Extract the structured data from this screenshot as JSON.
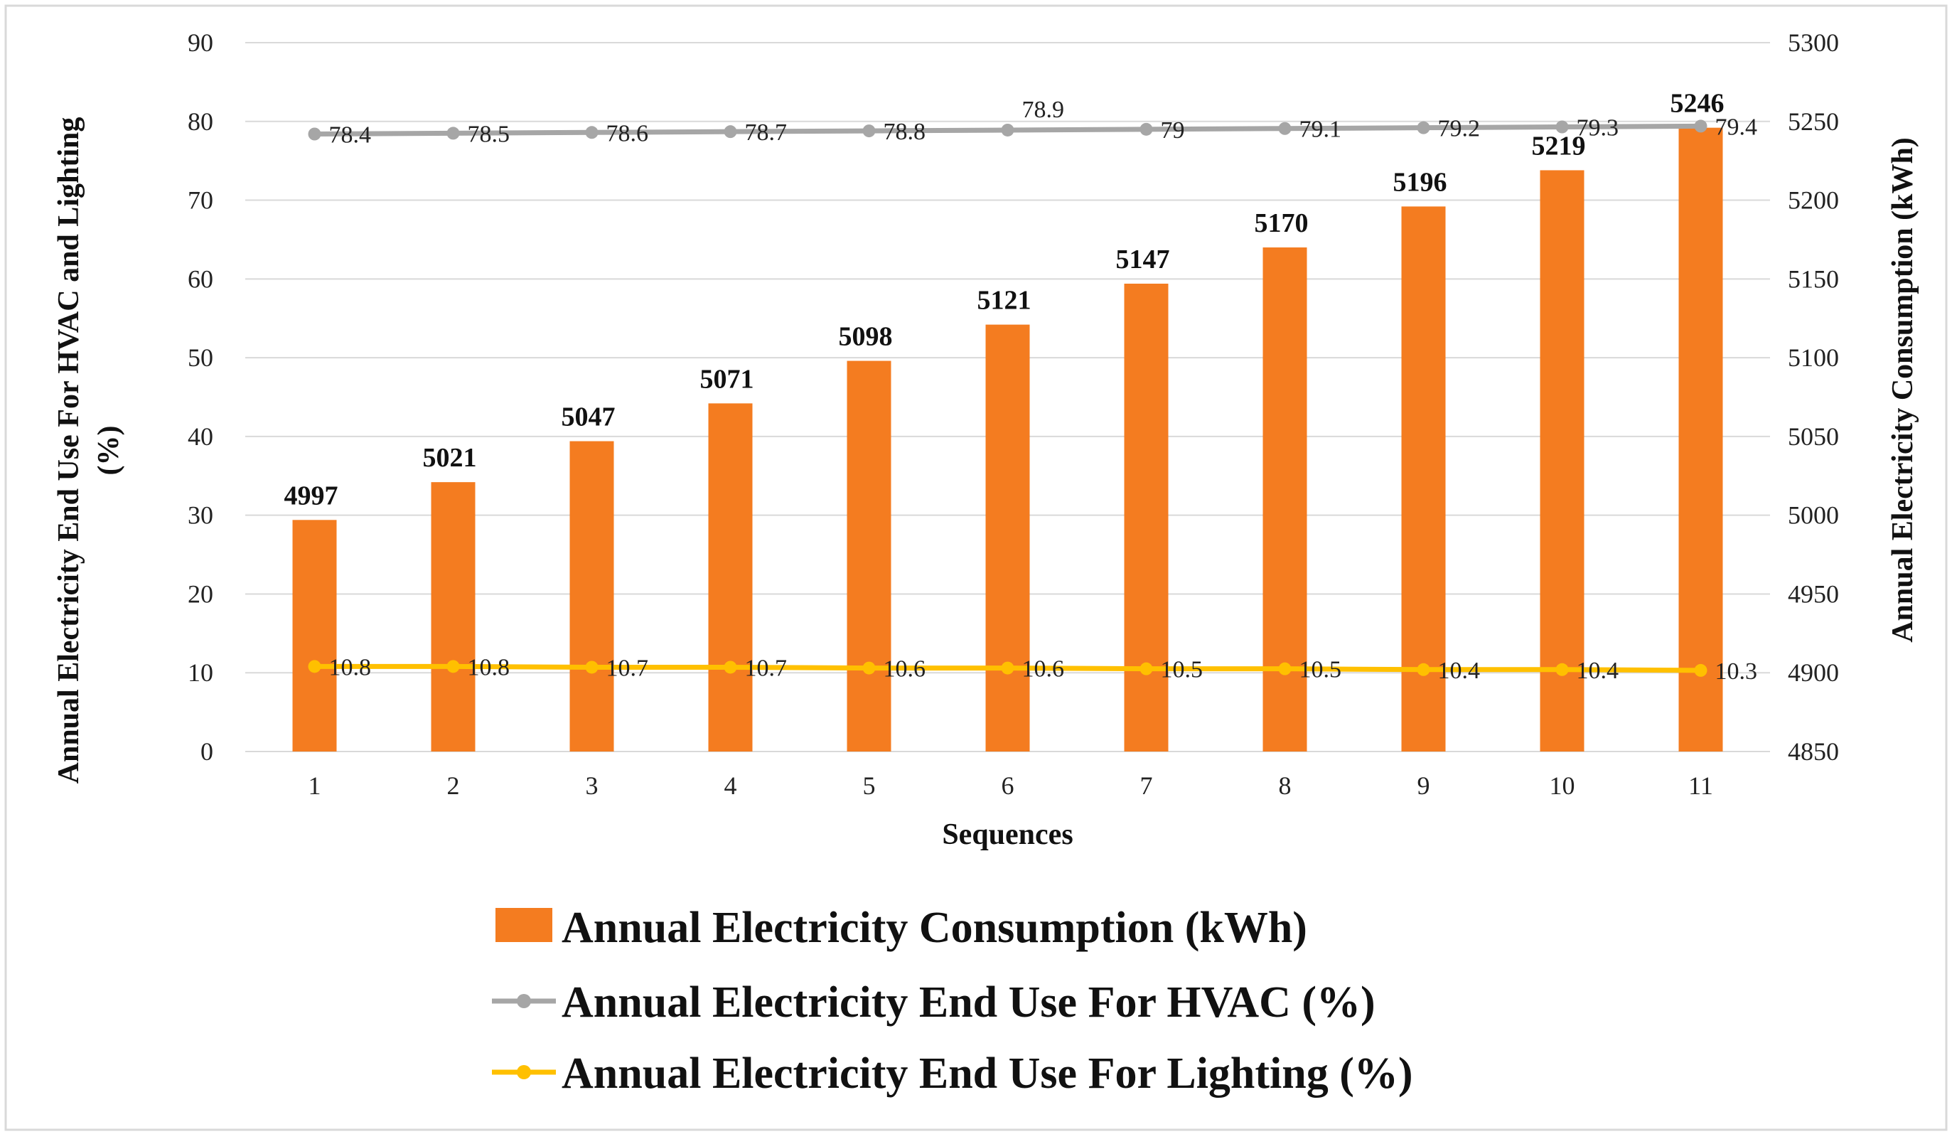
{
  "chart_data": {
    "type": "bar",
    "title": "",
    "xlabel": "Sequences",
    "ylabel_left": "Annual Electricity End Use For HVAC and Lighting (%)",
    "ylabel_left_lines": [
      "Annual Electricity End Use For HVAC and Lighting",
      "(%)"
    ],
    "ylabel_right": "Annual Electricity Consumption (kWh)",
    "categories": [
      "1",
      "2",
      "3",
      "4",
      "5",
      "6",
      "7",
      "8",
      "9",
      "10",
      "11"
    ],
    "y_left": {
      "min": 0,
      "max": 90,
      "ticks": [
        "0",
        "10",
        "20",
        "30",
        "40",
        "50",
        "60",
        "70",
        "80",
        "90"
      ]
    },
    "y_right": {
      "min": 4850,
      "max": 5300,
      "ticks": [
        "4850",
        "4900",
        "4950",
        "5000",
        "5050",
        "5100",
        "5150",
        "5200",
        "5250",
        "5300"
      ]
    },
    "grid": true,
    "legend_position": "bottom",
    "series": [
      {
        "name": "Annual Electricity Consumption (kWh)",
        "kind": "bar",
        "axis": "right",
        "color": "#F47C20",
        "values": [
          4997,
          5021,
          5047,
          5071,
          5098,
          5121,
          5147,
          5170,
          5196,
          5219,
          5246
        ],
        "labels": [
          "4997",
          "5021",
          "5047",
          "5071",
          "5098",
          "5121",
          "5147",
          "5170",
          "5196",
          "5219",
          "5246"
        ]
      },
      {
        "name": "Annual Electricity End Use For HVAC (%)",
        "kind": "line",
        "axis": "left",
        "color": "#A6A6A6",
        "values": [
          78.4,
          78.5,
          78.6,
          78.7,
          78.8,
          78.9,
          79,
          79.1,
          79.2,
          79.3,
          79.4
        ],
        "labels": [
          "78.4",
          "78.5",
          "78.6",
          "78.7",
          "78.8",
          "78.9",
          "79",
          "79.1",
          "79.2",
          "79.3",
          "79.4"
        ]
      },
      {
        "name": "Annual Electricity End Use For Lighting (%)",
        "kind": "line",
        "axis": "left",
        "color": "#FFC000",
        "values": [
          10.8,
          10.8,
          10.7,
          10.7,
          10.6,
          10.6,
          10.5,
          10.5,
          10.4,
          10.4,
          10.3
        ],
        "labels": [
          "10.8",
          "10.8",
          "10.7",
          "10.7",
          "10.6",
          "10.6",
          "10.5",
          "10.5",
          "10.4",
          "10.4",
          "10.3"
        ]
      }
    ]
  }
}
